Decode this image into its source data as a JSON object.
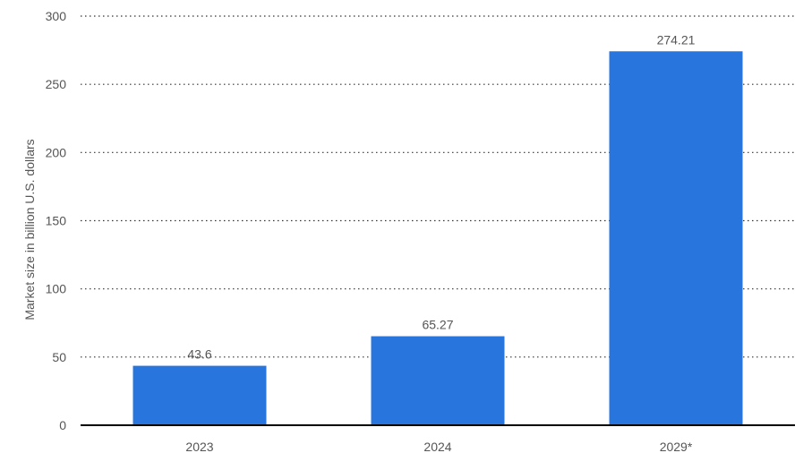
{
  "chart_data": {
    "type": "bar",
    "categories": [
      "2023",
      "2024",
      "2029*"
    ],
    "values": [
      43.6,
      65.27,
      274.21
    ],
    "value_labels": [
      "43.6",
      "65.27",
      "274.21"
    ],
    "title": "",
    "xlabel": "",
    "ylabel": "Market size in billion U.S. dollars",
    "ylim": [
      0,
      300
    ],
    "yticks": [
      0,
      50,
      100,
      150,
      200,
      250,
      300
    ],
    "ytick_labels": [
      "0",
      "50",
      "100",
      "150",
      "200",
      "250",
      "300"
    ],
    "grid": true,
    "grid_style": "dotted",
    "legend": "none"
  },
  "colors": {
    "bar": "#2876dd",
    "grid": "#333333",
    "axis": "#000000",
    "tick_text": "#555555",
    "value_text": "#555555",
    "axis_title_text": "#555555"
  }
}
